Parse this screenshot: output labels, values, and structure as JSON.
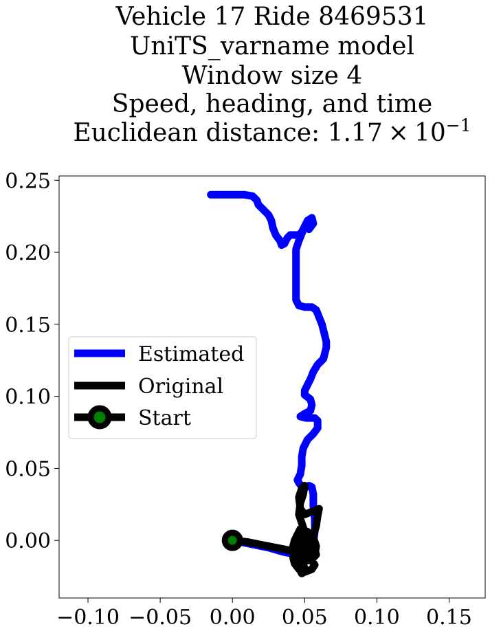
{
  "chart_data": {
    "type": "line",
    "title_lines": [
      "Vehicle 17 Ride 8469531",
      "UniTS_varname model",
      "Window size 4",
      "Speed, heading, and time"
    ],
    "title_metric": {
      "label": "Euclidean distance: 1.17",
      "mult": "×",
      "base": "10",
      "exp": "−1"
    },
    "xlabel": "",
    "ylabel": "",
    "xlim": [
      -0.12,
      0.175
    ],
    "ylim": [
      -0.04,
      0.253
    ],
    "x_ticks": [
      {
        "value": -0.1,
        "label": "−0.10"
      },
      {
        "value": -0.05,
        "label": "−0.05"
      },
      {
        "value": 0.0,
        "label": "0.00"
      },
      {
        "value": 0.05,
        "label": "0.05"
      },
      {
        "value": 0.1,
        "label": "0.10"
      },
      {
        "value": 0.15,
        "label": "0.15"
      }
    ],
    "y_ticks": [
      {
        "value": 0.0,
        "label": "0.00"
      },
      {
        "value": 0.05,
        "label": "0.05"
      },
      {
        "value": 0.1,
        "label": "0.10"
      },
      {
        "value": 0.15,
        "label": "0.15"
      },
      {
        "value": 0.2,
        "label": "0.20"
      },
      {
        "value": 0.25,
        "label": "0.25"
      }
    ],
    "grid": false,
    "legend_position": "center-left",
    "legend": [
      {
        "label": "Estimated",
        "color": "#0000ff",
        "marker": false
      },
      {
        "label": "Original",
        "color": "#000000",
        "marker": false
      },
      {
        "label": "Start",
        "color": "#000000",
        "marker": true,
        "marker_fill": "#008000"
      }
    ],
    "series": [
      {
        "name": "Estimated",
        "color": "#0000ff",
        "points": [
          [
            0.0,
            0.0
          ],
          [
            0.01,
            -0.002
          ],
          [
            0.025,
            -0.005
          ],
          [
            0.035,
            -0.008
          ],
          [
            0.045,
            -0.01
          ],
          [
            0.052,
            -0.008
          ],
          [
            0.056,
            -0.002
          ],
          [
            0.057,
            0.006
          ],
          [
            0.057,
            0.015
          ],
          [
            0.056,
            0.024
          ],
          [
            0.056,
            0.032
          ],
          [
            0.055,
            0.037
          ],
          [
            0.053,
            0.038
          ],
          [
            0.049,
            0.036
          ],
          [
            0.046,
            0.04
          ],
          [
            0.045,
            0.042
          ],
          [
            0.047,
            0.046
          ],
          [
            0.048,
            0.052
          ],
          [
            0.048,
            0.058
          ],
          [
            0.049,
            0.064
          ],
          [
            0.052,
            0.07
          ],
          [
            0.056,
            0.074
          ],
          [
            0.059,
            0.078
          ],
          [
            0.059,
            0.083
          ],
          [
            0.057,
            0.085
          ],
          [
            0.054,
            0.085
          ],
          [
            0.051,
            0.085
          ],
          [
            0.047,
            0.086
          ],
          [
            0.05,
            0.088
          ],
          [
            0.054,
            0.09
          ],
          [
            0.055,
            0.094
          ],
          [
            0.054,
            0.098
          ],
          [
            0.05,
            0.101
          ],
          [
            0.05,
            0.104
          ],
          [
            0.052,
            0.108
          ],
          [
            0.054,
            0.112
          ],
          [
            0.056,
            0.117
          ],
          [
            0.059,
            0.122
          ],
          [
            0.061,
            0.124
          ],
          [
            0.063,
            0.126
          ],
          [
            0.064,
            0.13
          ],
          [
            0.065,
            0.134
          ],
          [
            0.065,
            0.138
          ],
          [
            0.064,
            0.142
          ],
          [
            0.063,
            0.146
          ],
          [
            0.062,
            0.15
          ],
          [
            0.06,
            0.155
          ],
          [
            0.058,
            0.16
          ],
          [
            0.055,
            0.162
          ],
          [
            0.05,
            0.162
          ],
          [
            0.046,
            0.163
          ],
          [
            0.044,
            0.167
          ],
          [
            0.044,
            0.175
          ],
          [
            0.044,
            0.185
          ],
          [
            0.044,
            0.195
          ],
          [
            0.044,
            0.202
          ],
          [
            0.046,
            0.208
          ],
          [
            0.048,
            0.213
          ],
          [
            0.05,
            0.218
          ],
          [
            0.052,
            0.222
          ],
          [
            0.055,
            0.224
          ],
          [
            0.056,
            0.22
          ],
          [
            0.053,
            0.216
          ],
          [
            0.05,
            0.218
          ],
          [
            0.048,
            0.214
          ],
          [
            0.046,
            0.212
          ],
          [
            0.043,
            0.212
          ],
          [
            0.04,
            0.212
          ],
          [
            0.038,
            0.21
          ],
          [
            0.036,
            0.206
          ],
          [
            0.034,
            0.205
          ],
          [
            0.033,
            0.208
          ],
          [
            0.03,
            0.212
          ],
          [
            0.028,
            0.217
          ],
          [
            0.027,
            0.222
          ],
          [
            0.025,
            0.226
          ],
          [
            0.021,
            0.23
          ],
          [
            0.018,
            0.233
          ],
          [
            0.017,
            0.236
          ],
          [
            0.014,
            0.239
          ],
          [
            0.008,
            0.24
          ],
          [
            0.0,
            0.24
          ],
          [
            -0.008,
            0.24
          ],
          [
            -0.015,
            0.24
          ]
        ]
      },
      {
        "name": "Original",
        "color": "#000000",
        "points": [
          [
            0.0,
            0.0
          ],
          [
            0.01,
            -0.001
          ],
          [
            0.02,
            -0.003
          ],
          [
            0.03,
            -0.005
          ],
          [
            0.04,
            -0.007
          ],
          [
            0.045,
            -0.008
          ],
          [
            0.05,
            -0.006
          ],
          [
            0.054,
            -0.003
          ],
          [
            0.056,
            0.003
          ],
          [
            0.058,
            0.01
          ],
          [
            0.059,
            0.017
          ],
          [
            0.06,
            0.022
          ],
          [
            0.055,
            0.02
          ],
          [
            0.05,
            0.018
          ],
          [
            0.047,
            0.022
          ],
          [
            0.046,
            0.03
          ],
          [
            0.048,
            0.036
          ],
          [
            0.05,
            0.038
          ],
          [
            0.049,
            0.032
          ],
          [
            0.047,
            0.026
          ],
          [
            0.046,
            0.018
          ],
          [
            0.048,
            0.012
          ],
          [
            0.05,
            0.006
          ],
          [
            0.052,
            0.002
          ],
          [
            0.049,
            -0.002
          ],
          [
            0.046,
            -0.005
          ],
          [
            0.048,
            -0.01
          ],
          [
            0.052,
            -0.014
          ],
          [
            0.055,
            -0.012
          ],
          [
            0.054,
            -0.006
          ],
          [
            0.051,
            -0.002
          ],
          [
            0.048,
            0.002
          ],
          [
            0.046,
            0.006
          ],
          [
            0.044,
            0.002
          ],
          [
            0.045,
            -0.004
          ],
          [
            0.047,
            -0.01
          ],
          [
            0.049,
            -0.016
          ],
          [
            0.05,
            -0.02
          ],
          [
            0.048,
            -0.023
          ],
          [
            0.046,
            -0.019
          ],
          [
            0.045,
            -0.014
          ],
          [
            0.044,
            -0.008
          ],
          [
            0.046,
            -0.004
          ],
          [
            0.05,
            -0.008
          ],
          [
            0.054,
            -0.013
          ],
          [
            0.057,
            -0.017
          ],
          [
            0.055,
            -0.02
          ],
          [
            0.05,
            -0.022
          ],
          [
            0.046,
            -0.02
          ],
          [
            0.043,
            -0.016
          ],
          [
            0.042,
            -0.012
          ],
          [
            0.044,
            -0.009
          ],
          [
            0.048,
            -0.006
          ],
          [
            0.053,
            -0.004
          ],
          [
            0.057,
            -0.006
          ],
          [
            0.058,
            -0.01
          ],
          [
            0.055,
            -0.013
          ],
          [
            0.051,
            -0.012
          ],
          [
            0.046,
            -0.01
          ],
          [
            0.043,
            -0.008
          ],
          [
            0.042,
            -0.004
          ],
          [
            0.043,
            0.0
          ],
          [
            0.045,
            0.004
          ],
          [
            0.047,
            0.008
          ],
          [
            0.052,
            0.006
          ],
          [
            0.056,
            0.002
          ],
          [
            0.058,
            -0.004
          ],
          [
            0.057,
            -0.01
          ]
        ]
      }
    ],
    "start_point": {
      "x": 0.0,
      "y": 0.0,
      "color": "#008000"
    }
  }
}
